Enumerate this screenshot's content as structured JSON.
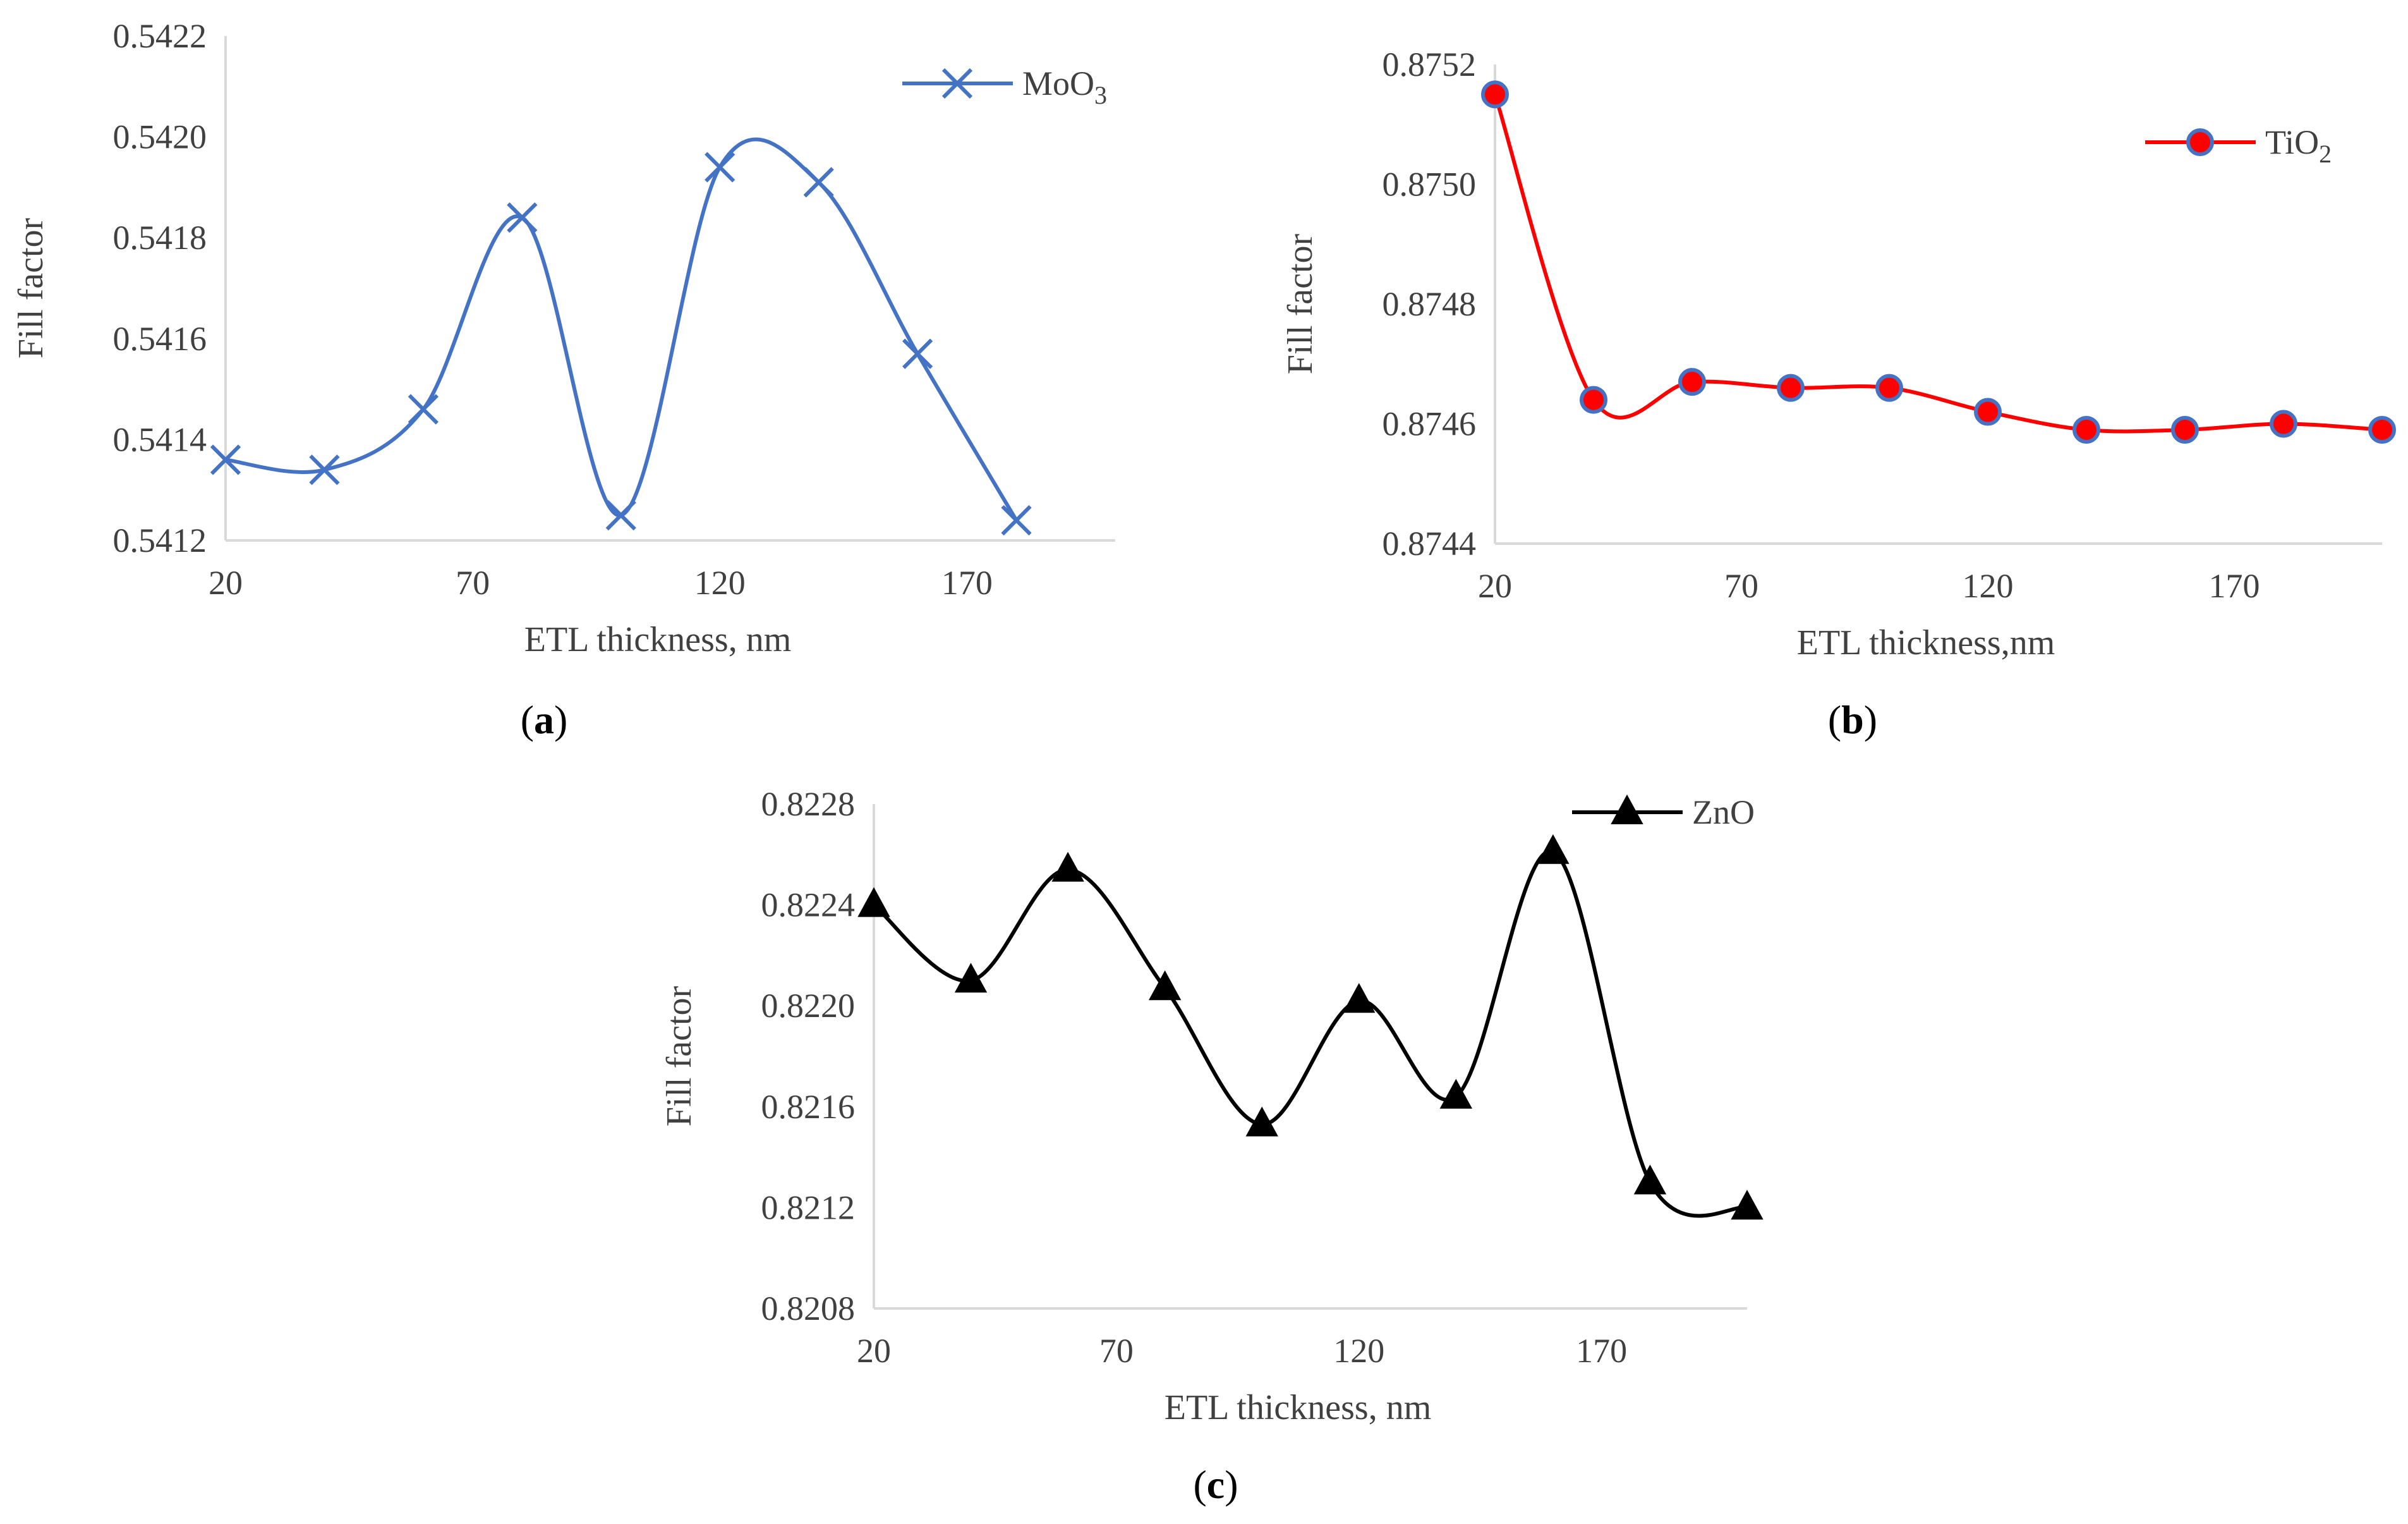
{
  "chart_data": [
    {
      "id": "a",
      "type": "line",
      "panel_label": "a",
      "xlabel": "ETL thickness, nm",
      "ylabel": "Fill factor",
      "xlim": [
        20,
        200
      ],
      "xticks": [
        20,
        70,
        120,
        170
      ],
      "ylim": [
        0.5412,
        0.5422
      ],
      "yticks": [
        "0.5412",
        "0.5414",
        "0.5416",
        "0.5418",
        "0.5420",
        "0.5422"
      ],
      "series": [
        {
          "name": "MoO3",
          "legend_main": "MoO",
          "legend_sub": "3",
          "color": "#4472c4",
          "marker": "x",
          "x": [
            20,
            40,
            60,
            80,
            100,
            120,
            140,
            160,
            180
          ],
          "y": [
            0.54136,
            0.54134,
            0.54146,
            0.54184,
            0.54125,
            0.54194,
            0.54191,
            0.54157,
            0.54124
          ]
        }
      ]
    },
    {
      "id": "b",
      "type": "line",
      "panel_label": "b",
      "xlabel": "ETL thickness,nm",
      "ylabel": "Fill factor",
      "xlim": [
        20,
        200
      ],
      "xticks": [
        20,
        70,
        120,
        170
      ],
      "ylim": [
        0.8744,
        0.8752
      ],
      "yticks": [
        "0.8744",
        "0.8746",
        "0.8748",
        "0.8750",
        "0.8752"
      ],
      "series": [
        {
          "name": "TiO2",
          "legend_main": "TiO",
          "legend_sub": "2",
          "color": "#ff0000",
          "marker_fill": "#ff0000",
          "marker_edge": "#4472c4",
          "marker": "circle",
          "x": [
            20,
            40,
            60,
            80,
            100,
            120,
            140,
            160,
            180,
            200
          ],
          "y": [
            0.87515,
            0.87464,
            0.87467,
            0.87466,
            0.87466,
            0.87462,
            0.87459,
            0.87459,
            0.8746,
            0.87459
          ]
        }
      ]
    },
    {
      "id": "c",
      "type": "line",
      "panel_label": "c",
      "xlabel": "ETL thickness, nm",
      "ylabel": "Fill factor",
      "xlim": [
        20,
        200
      ],
      "xticks": [
        20,
        70,
        120,
        170
      ],
      "ylim": [
        0.8208,
        0.8228
      ],
      "yticks": [
        "0.8208",
        "0.8212",
        "0.8216",
        "0.8220",
        "0.8224",
        "0.8228"
      ],
      "series": [
        {
          "name": "ZnO",
          "legend_main": "ZnO",
          "legend_sub": "",
          "color": "#000000",
          "marker": "triangle",
          "x": [
            20,
            40,
            60,
            80,
            100,
            120,
            140,
            160,
            180,
            200
          ],
          "y": [
            0.8224,
            0.8221,
            0.82254,
            0.82207,
            0.82153,
            0.82202,
            0.82164,
            0.82261,
            0.8213,
            0.8212
          ]
        }
      ]
    }
  ]
}
